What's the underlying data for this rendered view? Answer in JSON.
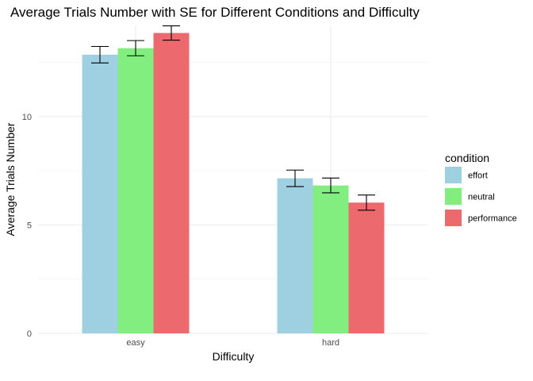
{
  "chart_data": {
    "type": "bar",
    "title": "Average Trials Number with SE for Different Conditions and Difficulty",
    "xlabel": "Difficulty",
    "ylabel": "Average Trials Number",
    "categories": [
      "easy",
      "hard"
    ],
    "series": [
      {
        "name": "effort",
        "values": [
          12.85,
          7.15
        ],
        "se": [
          0.38,
          0.38
        ],
        "color": "#9ed0e1"
      },
      {
        "name": "neutral",
        "values": [
          13.15,
          6.82
        ],
        "se": [
          0.35,
          0.34
        ],
        "color": "#82ee7f"
      },
      {
        "name": "performance",
        "values": [
          13.85,
          6.03
        ],
        "se": [
          0.33,
          0.35
        ],
        "color": "#ec6a6e"
      }
    ],
    "ylim": [
      0,
      14.2
    ],
    "yticks": [
      0,
      5,
      10
    ],
    "grid": true,
    "legend": {
      "title": "condition",
      "position": "right"
    }
  }
}
